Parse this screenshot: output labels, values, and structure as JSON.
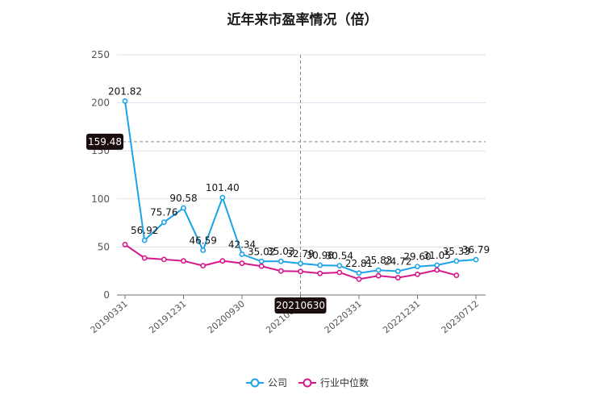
{
  "chart_data": {
    "type": "line",
    "title": "近年来市盈率情况（倍）",
    "xlabel": "",
    "ylabel": "",
    "ylim": [
      0,
      250
    ],
    "yticks": [
      0,
      50,
      100,
      150,
      200,
      250
    ],
    "grid": true,
    "legend_position": "bottom-center",
    "x": [
      "20190331",
      "20190630",
      "20190930",
      "20191231",
      "20200331",
      "20200630",
      "20200930",
      "20201231",
      "20210331",
      "20210630",
      "20210930",
      "20211231",
      "20220331",
      "20220630",
      "20220930",
      "20221231",
      "20230331",
      "20230630",
      "20230712"
    ],
    "x_tick_labels": [
      "20190331",
      "20191231",
      "20200930",
      "20210630",
      "20220331",
      "20221231",
      "20230712"
    ],
    "series": [
      {
        "name": "公司",
        "color": "#1aa3e8",
        "values": [
          201.82,
          56.92,
          75.76,
          90.58,
          46.59,
          101.4,
          42.34,
          35.02,
          35.03,
          32.79,
          30.98,
          30.54,
          22.81,
          25.83,
          24.72,
          29.6,
          31.05,
          35.33,
          36.79
        ],
        "labels": [
          "201.82",
          "56.92",
          "75.76",
          "90.58",
          "46.59",
          "101.40",
          "42.34",
          "35.02",
          "35.03",
          "32.79",
          "30.98",
          "30.54",
          "22.81",
          "25.83",
          "24.72",
          "29.60",
          "31.05",
          "35.33",
          "36.79"
        ]
      },
      {
        "name": "行业中位数",
        "color": "#d6168b",
        "values": [
          52.5,
          38.5,
          37.0,
          35.5,
          30.5,
          35.5,
          33.0,
          30.0,
          25.0,
          24.5,
          22.5,
          23.5,
          16.5,
          20.0,
          18.0,
          21.5,
          26.0,
          20.5,
          null
        ]
      }
    ],
    "crosshair": {
      "x_label": "20210630",
      "y_label": "159.48",
      "y_value": 159.48,
      "x_index": 9
    }
  }
}
